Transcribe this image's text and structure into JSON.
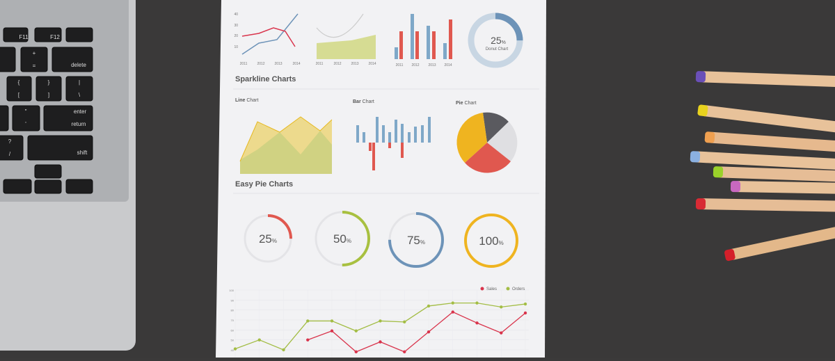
{
  "keyboard": {
    "keys": [
      "F11",
      "F12",
      "delete",
      "enter",
      "return",
      "shift",
      "+",
      "=",
      "{",
      "[",
      "}",
      "]",
      "|",
      "\\",
      "\"",
      "'",
      "?",
      "/"
    ]
  },
  "paper": {
    "top_charts": {
      "y_labels": [
        "40",
        "30",
        "20",
        "10"
      ],
      "x_labels": [
        "2011",
        "2012",
        "2013",
        "2014"
      ],
      "donut": {
        "value": 25,
        "unit": "%",
        "label": "Donut Chart",
        "color": "#6d93b8"
      }
    },
    "sparkline_title": "Sparkline Charts",
    "line_chart_label": [
      "Line",
      "Chart"
    ],
    "bar_chart_label": [
      "Bar",
      "Chart"
    ],
    "pie_chart_label": [
      "Pie",
      "Chart"
    ],
    "easy_pie_title": "Easy Pie Charts",
    "easy_pies": [
      {
        "value": 25,
        "unit": "%",
        "color": "#e0584f"
      },
      {
        "value": 50,
        "unit": "%",
        "color": "#a8c040"
      },
      {
        "value": 75,
        "unit": "%",
        "color": "#6d93b8"
      },
      {
        "value": 100,
        "unit": "%",
        "color": "#efb420"
      }
    ],
    "line_chart": {
      "ylim": [
        30,
        100
      ],
      "yticks": [
        40,
        50,
        60,
        70,
        80,
        90,
        100
      ],
      "series": [
        {
          "name": "Sales",
          "color": "#d9344c",
          "values": [
            null,
            null,
            null,
            50,
            59,
            38,
            48,
            38,
            58,
            78,
            67,
            57,
            77
          ]
        },
        {
          "name": "Orders",
          "color": "#a3bd45",
          "values": [
            41,
            50,
            40,
            69,
            69,
            59,
            69,
            68,
            84,
            87,
            87,
            83,
            86
          ]
        }
      ]
    }
  }
}
